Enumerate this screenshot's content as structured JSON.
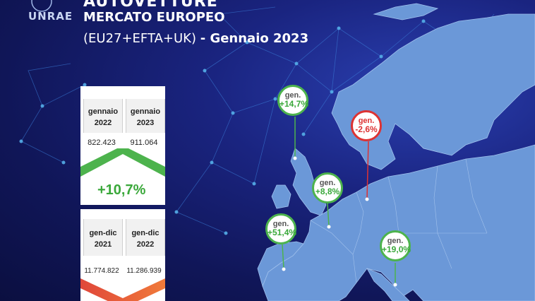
{
  "header": {
    "logo_text": "UNRAE",
    "title_line1": "AUTOVETTURE",
    "title_line2": "MERCATO EUROPEO",
    "title_line3_prefix": "(EU27+EFTA+UK)",
    "title_line3_suffix": "- Gennaio 2023"
  },
  "monthly": {
    "col1_label_a": "gennaio",
    "col1_label_b": "2022",
    "col2_label_a": "gennaio",
    "col2_label_b": "2023",
    "col1_value": "822.423",
    "col2_value": "911.064",
    "change": "+10,7%",
    "trend": "up",
    "color": "#4db34d"
  },
  "cumulative": {
    "col1_label_a": "gen-dic",
    "col1_label_b": "2021",
    "col2_label_a": "gen-dic",
    "col2_label_b": "2022",
    "col1_value": "11.774.822",
    "col2_value": "11.286.939",
    "trend": "down",
    "color": "#e0473a"
  },
  "markers": [
    {
      "label": "gen.",
      "value": "+14,7%",
      "trend": "up",
      "place": "United Kingdom"
    },
    {
      "label": "gen.",
      "value": "-2,6%",
      "trend": "down",
      "place": "Germany"
    },
    {
      "label": "gen.",
      "value": "+8,8%",
      "trend": "up",
      "place": "France"
    },
    {
      "label": "gen.",
      "value": "+51,4%",
      "trend": "up",
      "place": "Spain"
    },
    {
      "label": "gen.",
      "value": "+19,0%",
      "trend": "up",
      "place": "Italy"
    }
  ],
  "colors": {
    "background": "#141a66",
    "map_land": "#6b98d8",
    "positive": "#4db34d",
    "negative": "#d33333"
  }
}
